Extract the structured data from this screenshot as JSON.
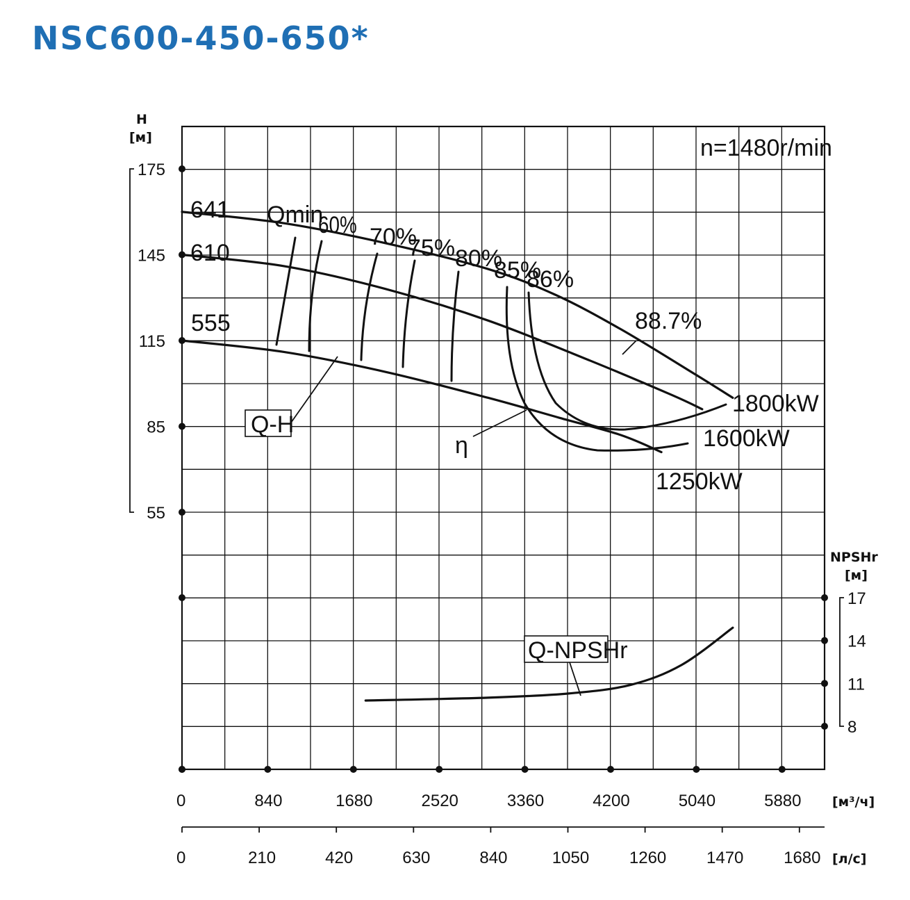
{
  "title": "NSC600-450-650*",
  "chart_data": {
    "type": "line",
    "speed_label": "n=1480r/min",
    "x_axis_m3h": {
      "ticks": [
        "0",
        "840",
        "1680",
        "2520",
        "3360",
        "4200",
        "5040",
        "5880"
      ],
      "unit": "[м³/ч]",
      "range": [
        0,
        6300
      ]
    },
    "x_axis_ls": {
      "ticks": [
        "0",
        "210",
        "420",
        "630",
        "840",
        "1050",
        "1260",
        "1470",
        "1680"
      ],
      "unit": "[л/с]",
      "range": [
        0,
        1750
      ]
    },
    "y_axis_head": {
      "label": "H",
      "unit": "[м]",
      "ticks": [
        "175",
        "145",
        "115",
        "85",
        "55"
      ],
      "range": [
        55,
        175
      ]
    },
    "y_axis_npsh": {
      "label": "NPSHr",
      "unit": "[м]",
      "ticks": [
        "17",
        "14",
        "11",
        "8"
      ],
      "range": [
        8,
        17
      ]
    },
    "qh_curves": [
      {
        "name": "641",
        "points": [
          [
            0,
            160
          ],
          [
            1000,
            156
          ],
          [
            2000,
            149
          ],
          [
            3000,
            140
          ],
          [
            3660,
            131
          ],
          [
            4300,
            119
          ],
          [
            5040,
            103
          ],
          [
            5400,
            95
          ]
        ]
      },
      {
        "name": "610",
        "points": [
          [
            0,
            145
          ],
          [
            1000,
            141
          ],
          [
            2000,
            133
          ],
          [
            3000,
            122
          ],
          [
            4000,
            108
          ],
          [
            4800,
            96
          ],
          [
            5100,
            91
          ]
        ]
      },
      {
        "name": "555",
        "points": [
          [
            0,
            115
          ],
          [
            1000,
            111
          ],
          [
            2000,
            104
          ],
          [
            3000,
            95
          ],
          [
            3700,
            88
          ],
          [
            4300,
            82
          ],
          [
            4700,
            76
          ]
        ]
      }
    ],
    "efficiency_labels": [
      "60%",
      "70%",
      "75%",
      "80%",
      "85%",
      "86%",
      "88.7%"
    ],
    "power_labels": [
      "1800kW",
      "1600kW",
      "1250kW"
    ],
    "annotations": [
      "Qmin",
      "Q-H",
      "η",
      "Q-NPSHr"
    ],
    "npshr_curve": {
      "name": "Q-NPSHr",
      "points": [
        [
          1800,
          9.8
        ],
        [
          3000,
          10.0
        ],
        [
          3800,
          10.3
        ],
        [
          4400,
          10.9
        ],
        [
          4900,
          12.3
        ],
        [
          5400,
          14.9
        ]
      ]
    }
  }
}
